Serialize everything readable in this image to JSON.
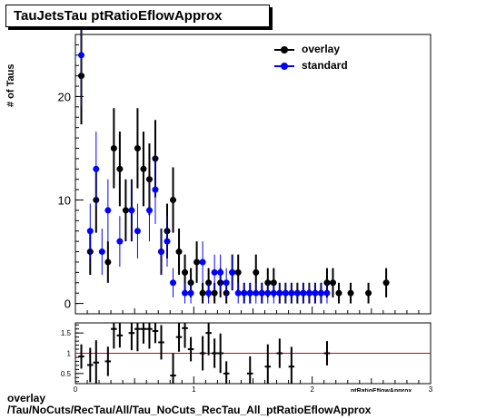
{
  "title": "TauJetsTau ptRatioEflowApprox",
  "ylabel": "# of Taus",
  "xlabel": "ptRatioEflowApprox",
  "footer_line1": "overlay",
  "footer_line2": "/Tau/NoCuts/RecTau/All/Tau_NoCuts_RecTau_All_ptRatioEflowApprox",
  "legend": [
    {
      "label": "overlay",
      "color": "#000000"
    },
    {
      "label": "standard",
      "color": "#0000ff"
    }
  ],
  "chart_data": [
    {
      "type": "scatter",
      "xlim": [
        0,
        3
      ],
      "ylim": [
        -1,
        26
      ],
      "x_ticks": [
        0,
        1,
        2,
        3
      ],
      "y_ticks": [
        0,
        10,
        20
      ],
      "bin_width": 0.05,
      "series": [
        {
          "name": "overlay",
          "color": "#000000",
          "x": [
            0.05,
            0.125,
            0.175,
            0.275,
            0.325,
            0.375,
            0.425,
            0.475,
            0.525,
            0.575,
            0.625,
            0.675,
            0.725,
            0.775,
            0.825,
            0.875,
            0.925,
            0.975,
            1.025,
            1.075,
            1.125,
            1.175,
            1.225,
            1.275,
            1.325,
            1.375,
            1.425,
            1.475,
            1.525,
            1.575,
            1.625,
            1.675,
            1.725,
            1.775,
            1.825,
            1.875,
            1.925,
            1.975,
            2.025,
            2.075,
            2.125,
            2.175,
            2.225,
            2.325,
            2.475,
            2.625
          ],
          "y": [
            22,
            5,
            10,
            4,
            15,
            13,
            9,
            9,
            15,
            13,
            12,
            14,
            5,
            7,
            10,
            5,
            3,
            2,
            4,
            1,
            2,
            1,
            2,
            1,
            3,
            3,
            1,
            1,
            3,
            1,
            2,
            2,
            1,
            1,
            1,
            1,
            1,
            1,
            1,
            1,
            2,
            2,
            1,
            1,
            1,
            2
          ]
        },
        {
          "name": "standard",
          "color": "#0000ff",
          "x": [
            0.05,
            0.125,
            0.175,
            0.225,
            0.275,
            0.375,
            0.475,
            0.525,
            0.625,
            0.675,
            0.725,
            0.775,
            0.825,
            0.925,
            0.975,
            1.075,
            1.125,
            1.175,
            1.225,
            1.275,
            1.325,
            1.375,
            1.425,
            1.475,
            1.525,
            1.575,
            1.625,
            1.675,
            1.725,
            1.775,
            1.825,
            1.875,
            1.925,
            1.975,
            2.025,
            2.075,
            2.125
          ],
          "y": [
            24,
            7,
            13,
            5,
            9,
            6,
            9,
            7,
            9,
            11,
            5,
            6,
            2,
            1,
            1,
            4,
            1,
            3,
            3,
            2,
            3,
            1,
            1,
            1,
            1,
            1,
            1,
            1,
            1,
            1,
            1,
            1,
            1,
            1,
            1,
            1,
            1
          ]
        }
      ]
    },
    {
      "type": "scatter",
      "name": "ratio",
      "xlim": [
        0,
        3
      ],
      "ylim": [
        0.25,
        1.75
      ],
      "x_ticks": [
        0,
        1,
        2,
        3
      ],
      "y_ticks": [
        0.5,
        1,
        1.5
      ],
      "reference_line": 1,
      "reference_color": "#cc0000",
      "x": [
        0.05,
        0.125,
        0.175,
        0.275,
        0.325,
        0.375,
        0.475,
        0.525,
        0.575,
        0.625,
        0.675,
        0.725,
        0.825,
        0.875,
        0.925,
        0.975,
        1.075,
        1.125,
        1.175,
        1.225,
        1.275,
        1.475,
        1.625,
        1.725,
        1.825,
        2.125
      ],
      "y": [
        0.92,
        0.71,
        0.77,
        0.8,
        1.6,
        1.44,
        1.5,
        1.6,
        1.6,
        1.6,
        1.55,
        1.27,
        0.45,
        1.4,
        1.62,
        1.1,
        1.0,
        1.5,
        1.0,
        1.0,
        0.5,
        0.5,
        0.67,
        1.0,
        0.67,
        1.0
      ]
    }
  ]
}
